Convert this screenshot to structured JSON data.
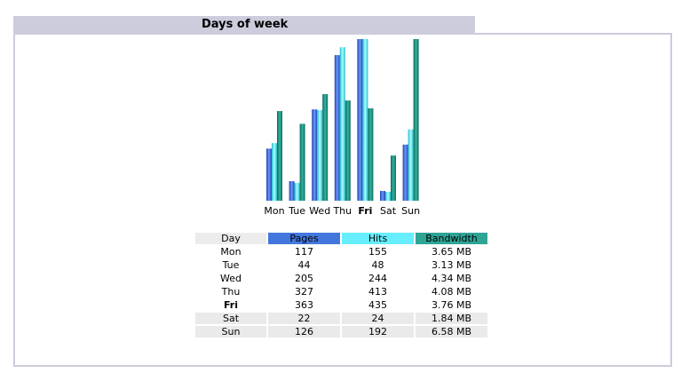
{
  "section_title": "Days of week",
  "colors": {
    "pages": "#4477dd",
    "hits": "#66eeff",
    "bandwidth": "#2ea495",
    "title_bar": "#ccccdd"
  },
  "table": {
    "headers": {
      "day": "Day",
      "pages": "Pages",
      "hits": "Hits",
      "bandwidth": "Bandwidth"
    },
    "rows": [
      {
        "day": "Mon",
        "pages": "117",
        "hits": "155",
        "bandwidth": "3.65 MB"
      },
      {
        "day": "Tue",
        "pages": "44",
        "hits": "48",
        "bandwidth": "3.13 MB"
      },
      {
        "day": "Wed",
        "pages": "205",
        "hits": "244",
        "bandwidth": "4.34 MB"
      },
      {
        "day": "Thu",
        "pages": "327",
        "hits": "413",
        "bandwidth": "4.08 MB"
      },
      {
        "day": "Fri",
        "pages": "363",
        "hits": "435",
        "bandwidth": "3.76 MB"
      },
      {
        "day": "Sat",
        "pages": "22",
        "hits": "24",
        "bandwidth": "1.84 MB"
      },
      {
        "day": "Sun",
        "pages": "126",
        "hits": "192",
        "bandwidth": "6.58 MB"
      }
    ]
  },
  "chart_data": {
    "type": "bar",
    "categories": [
      "Mon",
      "Tue",
      "Wed",
      "Thu",
      "Fri",
      "Sat",
      "Sun"
    ],
    "highlighted_category": "Fri",
    "series": [
      {
        "name": "Pages",
        "values": [
          117,
          44,
          205,
          327,
          363,
          22,
          126
        ]
      },
      {
        "name": "Hits",
        "values": [
          155,
          48,
          244,
          413,
          435,
          24,
          192
        ]
      },
      {
        "name": "Bandwidth",
        "values": [
          3.65,
          3.13,
          4.34,
          4.08,
          3.76,
          1.84,
          6.58
        ]
      }
    ]
  }
}
